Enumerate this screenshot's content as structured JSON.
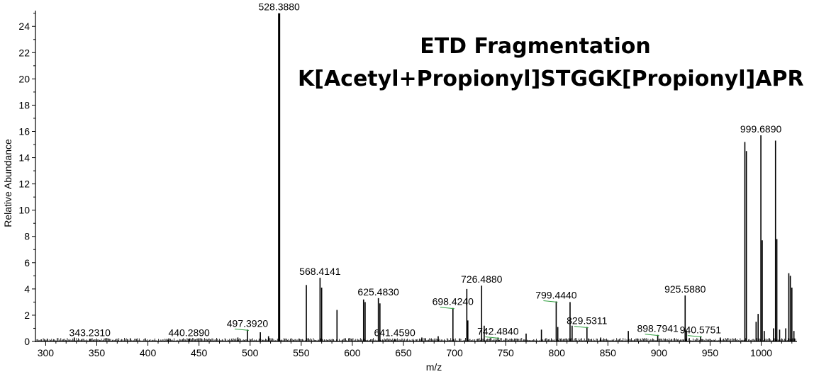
{
  "chart_data": {
    "type": "bar",
    "title": "ETD Fragmentation",
    "subtitle": "K[Acetyl+Propionyl]STGGK[Propionyl]APR",
    "xlabel": "m/z",
    "ylabel": "Relative Abundance",
    "xlim": [
      290,
      1035
    ],
    "ylim": [
      0,
      25.2
    ],
    "xticks": [
      300,
      350,
      400,
      450,
      500,
      550,
      600,
      650,
      700,
      750,
      800,
      850,
      900,
      950,
      1000
    ],
    "yticks": [
      0,
      2,
      4,
      6,
      8,
      10,
      12,
      14,
      16,
      18,
      20,
      22,
      24
    ],
    "grid": false,
    "bar_color": "#000000",
    "peak_label_marker_color": "#2e9e3e",
    "peaks": [
      {
        "mz": 328.0,
        "intensity": 0.3
      },
      {
        "mz": 343.231,
        "intensity": 0.2
      },
      {
        "mz": 420.0,
        "intensity": 0.15
      },
      {
        "mz": 440.289,
        "intensity": 0.2
      },
      {
        "mz": 488.0,
        "intensity": 0.3
      },
      {
        "mz": 497.392,
        "intensity": 0.9
      },
      {
        "mz": 510.0,
        "intensity": 0.7
      },
      {
        "mz": 518.0,
        "intensity": 0.4
      },
      {
        "mz": 528.388,
        "intensity": 25.0
      },
      {
        "mz": 555.0,
        "intensity": 4.3
      },
      {
        "mz": 568.4141,
        "intensity": 4.85
      },
      {
        "mz": 570.0,
        "intensity": 4.1
      },
      {
        "mz": 585.0,
        "intensity": 2.4
      },
      {
        "mz": 611.0,
        "intensity": 3.2
      },
      {
        "mz": 612.5,
        "intensity": 3.0
      },
      {
        "mz": 625.483,
        "intensity": 3.3
      },
      {
        "mz": 627.0,
        "intensity": 2.9
      },
      {
        "mz": 641.459,
        "intensity": 0.2
      },
      {
        "mz": 668.0,
        "intensity": 0.3
      },
      {
        "mz": 684.0,
        "intensity": 0.4
      },
      {
        "mz": 698.424,
        "intensity": 2.55
      },
      {
        "mz": 712.0,
        "intensity": 4.0
      },
      {
        "mz": 713.0,
        "intensity": 1.6
      },
      {
        "mz": 726.488,
        "intensity": 4.25
      },
      {
        "mz": 729.0,
        "intensity": 1.2
      },
      {
        "mz": 742.484,
        "intensity": 0.3
      },
      {
        "mz": 770.0,
        "intensity": 0.6
      },
      {
        "mz": 785.0,
        "intensity": 0.9
      },
      {
        "mz": 799.444,
        "intensity": 3.05
      },
      {
        "mz": 801.0,
        "intensity": 1.1
      },
      {
        "mz": 813.0,
        "intensity": 3.0
      },
      {
        "mz": 815.0,
        "intensity": 1.2
      },
      {
        "mz": 829.5311,
        "intensity": 1.1
      },
      {
        "mz": 843.0,
        "intensity": 0.3
      },
      {
        "mz": 870.0,
        "intensity": 0.8
      },
      {
        "mz": 898.7941,
        "intensity": 0.5
      },
      {
        "mz": 925.588,
        "intensity": 3.5
      },
      {
        "mz": 927.0,
        "intensity": 0.8
      },
      {
        "mz": 940.5751,
        "intensity": 0.4
      },
      {
        "mz": 960.0,
        "intensity": 0.3
      },
      {
        "mz": 984.0,
        "intensity": 15.2
      },
      {
        "mz": 985.5,
        "intensity": 14.5
      },
      {
        "mz": 995.0,
        "intensity": 1.5
      },
      {
        "mz": 997.0,
        "intensity": 2.1
      },
      {
        "mz": 999.689,
        "intensity": 15.7
      },
      {
        "mz": 1001.0,
        "intensity": 7.7
      },
      {
        "mz": 1003.0,
        "intensity": 0.8
      },
      {
        "mz": 1012.0,
        "intensity": 1.0
      },
      {
        "mz": 1014.0,
        "intensity": 15.3
      },
      {
        "mz": 1015.3,
        "intensity": 7.8
      },
      {
        "mz": 1018.0,
        "intensity": 0.9
      },
      {
        "mz": 1024.0,
        "intensity": 1.0
      },
      {
        "mz": 1027.0,
        "intensity": 5.2
      },
      {
        "mz": 1028.5,
        "intensity": 5.0
      },
      {
        "mz": 1030.0,
        "intensity": 4.1
      },
      {
        "mz": 1032.0,
        "intensity": 0.8
      }
    ],
    "labels": [
      {
        "text": "343.2310",
        "mz": 343.231,
        "intensity": 0.2
      },
      {
        "text": "440.2890",
        "mz": 440.289,
        "intensity": 0.2
      },
      {
        "text": "497.3920",
        "mz": 497.392,
        "intensity": 0.9
      },
      {
        "text": "528.3880",
        "mz": 528.388,
        "intensity": 25.0
      },
      {
        "text": "568.4141",
        "mz": 568.4141,
        "intensity": 4.85
      },
      {
        "text": "625.4830",
        "mz": 625.483,
        "intensity": 3.3
      },
      {
        "text": "641.4590",
        "mz": 641.459,
        "intensity": 0.2
      },
      {
        "text": "698.4240",
        "mz": 698.424,
        "intensity": 2.55
      },
      {
        "text": "726.4880",
        "mz": 726.488,
        "intensity": 4.25
      },
      {
        "text": "742.4840",
        "mz": 742.484,
        "intensity": 0.3
      },
      {
        "text": "799.4440",
        "mz": 799.444,
        "intensity": 3.05
      },
      {
        "text": "829.5311",
        "mz": 829.5311,
        "intensity": 1.1
      },
      {
        "text": "898.7941",
        "mz": 898.7941,
        "intensity": 0.5
      },
      {
        "text": "925.5880",
        "mz": 925.588,
        "intensity": 3.5
      },
      {
        "text": "940.5751",
        "mz": 940.5751,
        "intensity": 0.4
      },
      {
        "text": "999.6890",
        "mz": 999.689,
        "intensity": 15.7
      }
    ]
  }
}
